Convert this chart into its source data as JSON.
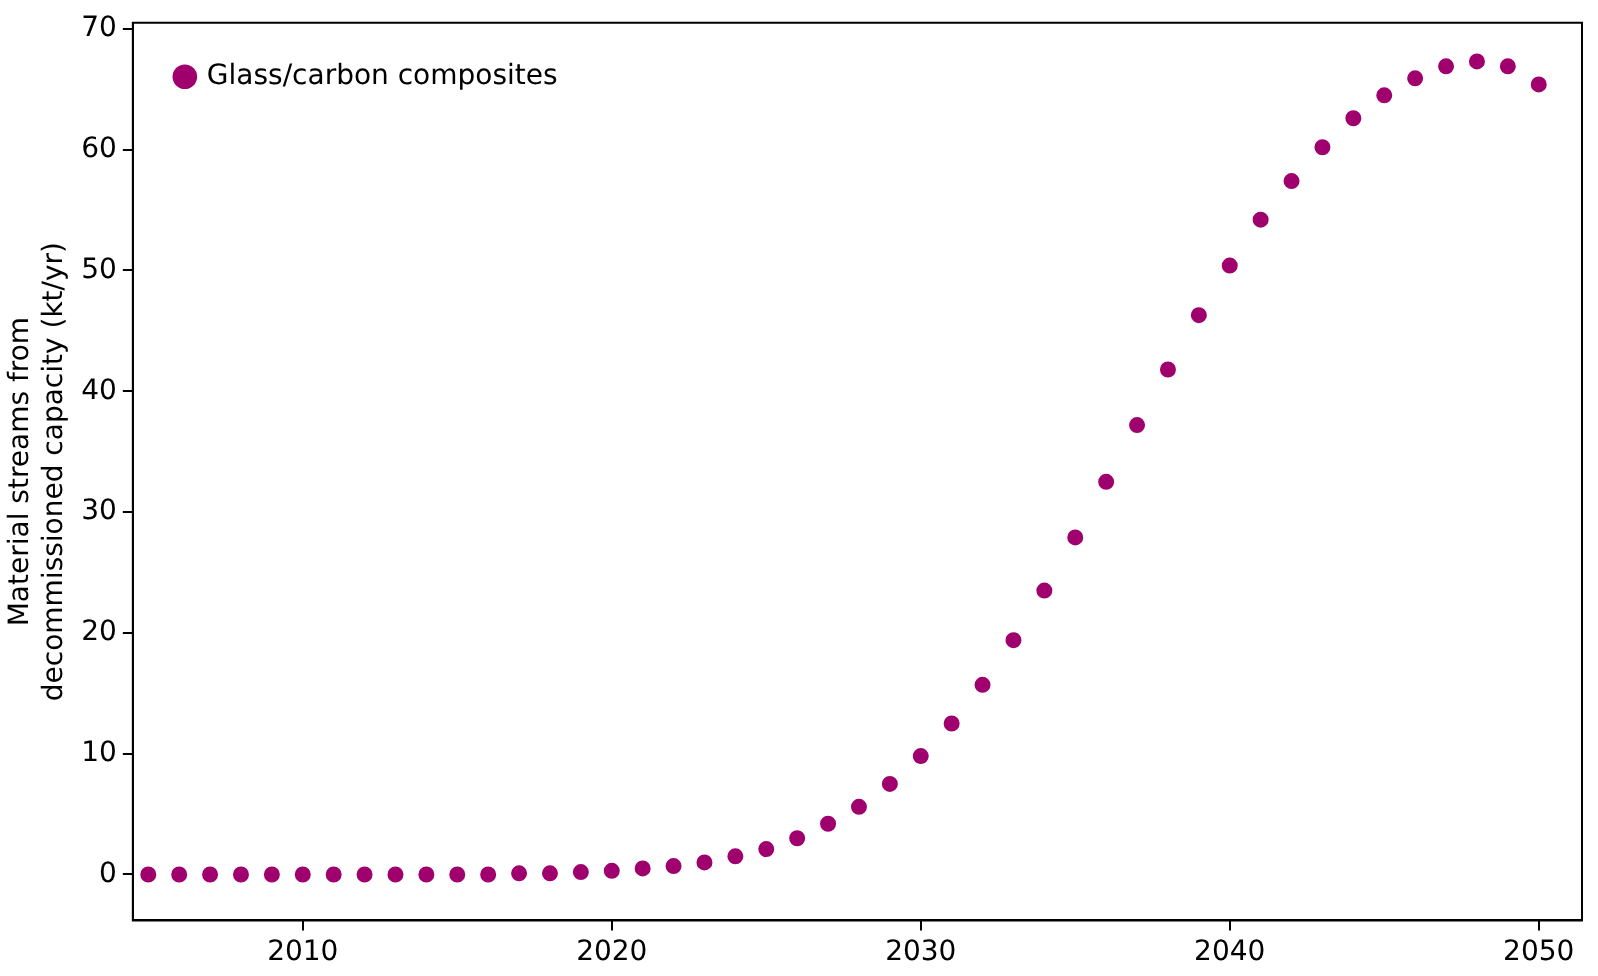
{
  "chart_data": {
    "type": "scatter",
    "ylabel": "Material streams from\ndecommissioned capacity (kt/yr)",
    "x": [
      2005,
      2006,
      2007,
      2008,
      2009,
      2010,
      2011,
      2012,
      2013,
      2014,
      2015,
      2016,
      2017,
      2018,
      2019,
      2020,
      2021,
      2022,
      2023,
      2024,
      2025,
      2026,
      2027,
      2028,
      2029,
      2030,
      2031,
      2032,
      2033,
      2034,
      2035,
      2036,
      2037,
      2038,
      2039,
      2040,
      2041,
      2042,
      2043,
      2044,
      2045,
      2046,
      2047,
      2048,
      2049,
      2050
    ],
    "series": [
      {
        "name": "Glass/carbon composites",
        "color": "#a0006e",
        "values": [
          0,
          0,
          0,
          0,
          0,
          0,
          0,
          0,
          0,
          0,
          0,
          0,
          0.1,
          0.1,
          0.2,
          0.3,
          0.5,
          0.7,
          1.0,
          1.5,
          2.1,
          3.0,
          4.2,
          5.6,
          7.5,
          9.8,
          12.5,
          15.7,
          19.4,
          23.5,
          27.9,
          32.5,
          37.2,
          41.8,
          46.3,
          50.4,
          54.2,
          57.4,
          60.2,
          62.6,
          64.5,
          65.9,
          66.9,
          67.3,
          66.9,
          65.4
        ]
      }
    ],
    "xlim": [
      2004.5,
      2051.4
    ],
    "xticks": [
      2010,
      2020,
      2030,
      2040,
      2050
    ],
    "ylim": [
      -3.8,
      70.5
    ],
    "yticks": [
      0,
      10,
      20,
      30,
      40,
      50,
      60,
      70
    ],
    "grid": false,
    "legend": "top left",
    "marker": "circle"
  }
}
